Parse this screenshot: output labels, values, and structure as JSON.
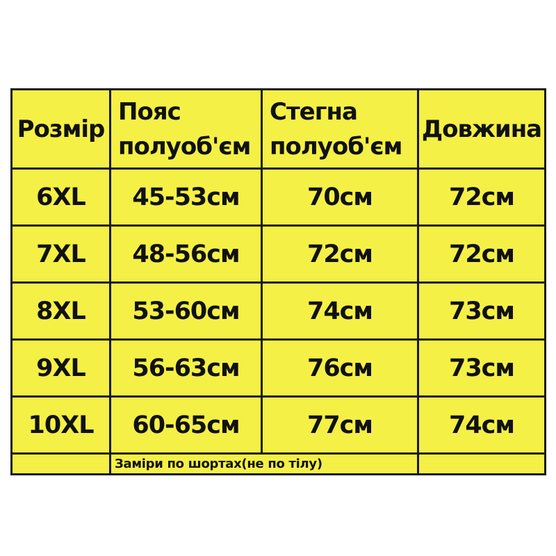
{
  "colors": {
    "background": "#ffffff",
    "cell": "#f4f046",
    "border": "#1a1a1a",
    "text": "#111111"
  },
  "header_lines": [
    [
      "Розмір"
    ],
    [
      "Пояс",
      "полуоб'єм"
    ],
    [
      "Стегна",
      "полуоб'єм"
    ],
    [
      "Довжина"
    ]
  ],
  "chart_data": {
    "type": "table",
    "title": "",
    "columns": [
      "Розмір",
      "Пояс полуоб'єм",
      "Стегна полуоб'єм",
      "Довжина"
    ],
    "rows": [
      [
        "6XL",
        "45-53см",
        "70см",
        "72см"
      ],
      [
        "7XL",
        "48-56см",
        "72см",
        "72см"
      ],
      [
        "8XL",
        "53-60см",
        "74см",
        "73см"
      ],
      [
        "9XL",
        "56-63см",
        "76см",
        "73см"
      ],
      [
        "10XL",
        "60-65см",
        "77см",
        "74см"
      ]
    ],
    "footnote": "Заміри по шортах(не по тілу)"
  }
}
